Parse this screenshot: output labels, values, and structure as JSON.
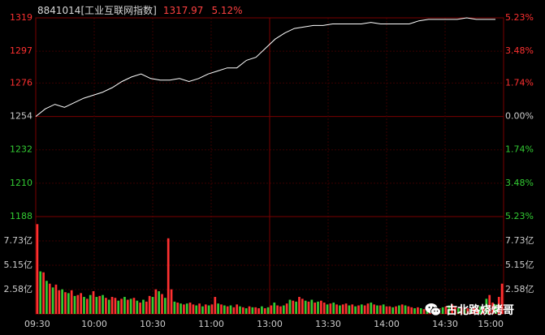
{
  "header": {
    "code_name": "8841014[工业互联网指数]",
    "last_price": "1317.97",
    "change_pct": "5.12%"
  },
  "watermark": {
    "text": "古北路烧烤哥",
    "icon": "wechat-icon"
  },
  "colors": {
    "background": "#000000",
    "grid": "#3a0000",
    "price_line": "#ffffff",
    "up": "#ff3030",
    "down": "#33cc33",
    "neutral": "#cccccc"
  },
  "chart_data": [
    {
      "type": "line",
      "name": "price",
      "y_left_ticks": [
        {
          "label": "1319",
          "value": 1319,
          "color": "up"
        },
        {
          "label": "1297",
          "value": 1297,
          "color": "up"
        },
        {
          "label": "1276",
          "value": 1276,
          "color": "up"
        },
        {
          "label": "1254",
          "value": 1254,
          "color": "neutral"
        },
        {
          "label": "1232",
          "value": 1232,
          "color": "down"
        },
        {
          "label": "1210",
          "value": 1210,
          "color": "down"
        },
        {
          "label": "1188",
          "value": 1188,
          "color": "down"
        }
      ],
      "y_right_ticks": [
        {
          "label": "5.23%",
          "color": "up"
        },
        {
          "label": "3.48%",
          "color": "up"
        },
        {
          "label": "1.74%",
          "color": "up"
        },
        {
          "label": "0.00%",
          "color": "neutral"
        },
        {
          "label": "1.74%",
          "color": "down"
        },
        {
          "label": "3.48%",
          "color": "down"
        },
        {
          "label": "5.23%",
          "color": "down"
        }
      ],
      "ylim": [
        1188,
        1319
      ],
      "x_ticks": [
        "09:30",
        "10:00",
        "10:30",
        "11:00",
        "13:00",
        "13:30",
        "14:00",
        "14:30",
        "15:00"
      ],
      "x": [
        0,
        5,
        10,
        15,
        20,
        25,
        30,
        35,
        40,
        45,
        50,
        55,
        60,
        65,
        70,
        75,
        80,
        85,
        90,
        95,
        100,
        105,
        110,
        115,
        120,
        125,
        130,
        135,
        140,
        145,
        150,
        155,
        160,
        165,
        170,
        175,
        180,
        185,
        190,
        195,
        200,
        205,
        210,
        215,
        220,
        225,
        230,
        235,
        240
      ],
      "values": [
        1254,
        1259,
        1262,
        1260,
        1263,
        1266,
        1268,
        1270,
        1273,
        1277,
        1280,
        1282,
        1279,
        1278,
        1278,
        1279,
        1277,
        1279,
        1282,
        1284,
        1286,
        1286,
        1291,
        1293,
        1299,
        1305,
        1309,
        1312,
        1313,
        1314,
        1314,
        1315,
        1315,
        1315,
        1315,
        1316,
        1315,
        1315,
        1315,
        1315,
        1317,
        1318,
        1318,
        1318,
        1318,
        1319,
        1318,
        1318,
        1318
      ]
    },
    {
      "type": "bar",
      "name": "volume",
      "y_ticks": [
        {
          "label": "7.73亿",
          "value": 7.73
        },
        {
          "label": "5.15亿",
          "value": 5.15
        },
        {
          "label": "2.58亿",
          "value": 2.58
        }
      ],
      "ylim": [
        0,
        10.3
      ],
      "values": [
        9.5,
        4.5,
        4.4,
        3.5,
        3.2,
        2.8,
        3.1,
        2.5,
        2.6,
        2.3,
        2.2,
        2.5,
        1.9,
        2.0,
        2.2,
        1.8,
        1.6,
        2.0,
        2.4,
        1.8,
        1.9,
        2.0,
        1.7,
        1.5,
        1.8,
        1.7,
        1.4,
        1.6,
        1.8,
        1.5,
        1.6,
        1.7,
        1.4,
        1.2,
        1.5,
        1.3,
        1.9,
        1.8,
        2.6,
        2.4,
        2.1,
        1.7,
        8.0,
        2.6,
        1.3,
        1.2,
        1.1,
        1.0,
        1.1,
        1.2,
        1.0,
        0.9,
        1.1,
        0.8,
        1.0,
        0.9,
        1.0,
        1.8,
        1.1,
        1.0,
        0.9,
        0.8,
        0.9,
        0.7,
        1.0,
        0.8,
        0.7,
        0.6,
        0.8,
        0.7,
        0.7,
        0.6,
        0.8,
        0.6,
        0.7,
        0.9,
        1.2,
        0.9,
        0.8,
        0.9,
        1.1,
        1.5,
        1.4,
        1.3,
        1.8,
        1.6,
        1.4,
        1.3,
        1.5,
        1.2,
        1.3,
        1.4,
        1.2,
        1.0,
        1.1,
        1.2,
        1.0,
        0.9,
        1.0,
        1.1,
        0.9,
        1.0,
        0.8,
        0.9,
        1.0,
        0.9,
        1.1,
        1.2,
        1.0,
        0.9,
        0.9,
        1.0,
        0.8,
        0.8,
        0.7,
        0.8,
        0.9,
        1.0,
        0.9,
        0.8,
        0.7,
        0.6,
        0.7,
        0.6,
        0.5,
        0.6,
        0.7,
        0.6,
        0.5,
        0.6,
        0.7,
        0.8,
        0.9,
        1.0,
        0.8,
        0.6,
        0.7,
        0.5,
        0.6,
        0.5,
        0.6,
        0.7,
        0.8,
        0.7,
        1.6,
        2.0,
        1.2,
        1.0,
        1.8,
        3.2
      ],
      "colors": [
        "up",
        "down",
        "up",
        "down",
        "up",
        "down",
        "up",
        "up",
        "down",
        "up",
        "down",
        "up",
        "down",
        "up",
        "up",
        "down",
        "up",
        "down",
        "up",
        "down",
        "up",
        "down",
        "up",
        "down",
        "up",
        "up",
        "down",
        "up",
        "down",
        "up",
        "down",
        "up",
        "down",
        "up",
        "down",
        "up",
        "up",
        "down",
        "up",
        "down",
        "up",
        "down",
        "up",
        "up",
        "down",
        "up",
        "down",
        "up",
        "down",
        "up",
        "up",
        "down",
        "up",
        "down",
        "up",
        "down",
        "up",
        "up",
        "down",
        "up",
        "down",
        "up",
        "down",
        "up",
        "up",
        "down",
        "up",
        "down",
        "up",
        "down",
        "up",
        "up",
        "down",
        "up",
        "down",
        "up",
        "down",
        "up",
        "up",
        "down",
        "up",
        "down",
        "up",
        "down",
        "up",
        "up",
        "down",
        "up",
        "down",
        "up",
        "down",
        "up",
        "up",
        "down",
        "up",
        "down",
        "up",
        "down",
        "up",
        "up",
        "down",
        "up",
        "down",
        "up",
        "down",
        "up",
        "up",
        "down",
        "up",
        "down",
        "up",
        "down",
        "up",
        "up",
        "down",
        "up",
        "down",
        "up",
        "down",
        "up",
        "up",
        "down",
        "up",
        "down",
        "up",
        "down",
        "up",
        "up",
        "down",
        "up",
        "down",
        "up",
        "down",
        "up",
        "up",
        "down",
        "up",
        "down",
        "up",
        "down",
        "up",
        "up",
        "down",
        "up",
        "down",
        "up",
        "up",
        "down",
        "up",
        "up",
        "up"
      ]
    }
  ]
}
